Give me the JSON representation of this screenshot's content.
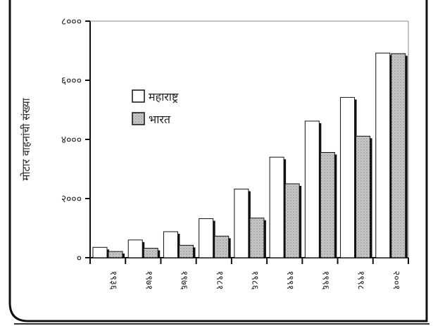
{
  "chart_data": {
    "type": "bar",
    "title": "",
    "xlabel": "",
    "ylabel": "मोटार वाहनांची संख्या",
    "categories": [
      "१९३६",
      "१९७१",
      "१९७६",
      "१९८१",
      "१९८६",
      "१९९१",
      "१९९६",
      "१९९८",
      "२००१"
    ],
    "series": [
      {
        "name": "महाराष्ट्र",
        "values": [
          350,
          600,
          880,
          1320,
          2320,
          3400,
          4620,
          5420,
          6920
        ],
        "color": "#ffffff"
      },
      {
        "name": "भारत",
        "values": [
          210,
          320,
          420,
          730,
          1340,
          2500,
          3560,
          4110,
          6900
        ],
        "color": "#c4c4c4"
      }
    ],
    "yticks": [
      {
        "value": 0,
        "label": "०"
      },
      {
        "value": 2000,
        "label": "२०००"
      },
      {
        "value": 4000,
        "label": "४०००"
      },
      {
        "value": 6000,
        "label": "६०००"
      },
      {
        "value": 8000,
        "label": "८०००"
      }
    ],
    "ylim": [
      0,
      8000
    ],
    "grid": false,
    "legend_position": "upper-left"
  }
}
